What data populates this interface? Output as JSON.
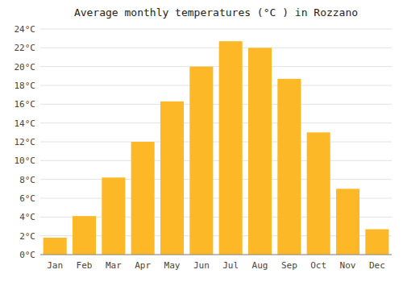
{
  "chart_data": {
    "type": "bar",
    "title": "Average monthly temperatures (°C ) in Rozzano",
    "categories": [
      "Jan",
      "Feb",
      "Mar",
      "Apr",
      "May",
      "Jun",
      "Jul",
      "Aug",
      "Sep",
      "Oct",
      "Nov",
      "Dec"
    ],
    "values": [
      1.8,
      4.1,
      8.2,
      12.0,
      16.3,
      20.0,
      22.7,
      22.0,
      18.7,
      13.0,
      7.0,
      2.7
    ],
    "color": "#FDB827",
    "ylim": [
      0,
      24
    ],
    "yticks": [
      {
        "value": 0,
        "label": "0°C"
      },
      {
        "value": 2,
        "label": "2°C"
      },
      {
        "value": 4,
        "label": "4°C"
      },
      {
        "value": 6,
        "label": "6°C"
      },
      {
        "value": 8,
        "label": "8°C"
      },
      {
        "value": 10,
        "label": "10°C"
      },
      {
        "value": 12,
        "label": "12°C"
      },
      {
        "value": 14,
        "label": "14°C"
      },
      {
        "value": 16,
        "label": "16°C"
      },
      {
        "value": 18,
        "label": "18°C"
      },
      {
        "value": 20,
        "label": "20°C"
      },
      {
        "value": 22,
        "label": "22°C"
      },
      {
        "value": 24,
        "label": "24°C"
      }
    ],
    "grid": true
  }
}
